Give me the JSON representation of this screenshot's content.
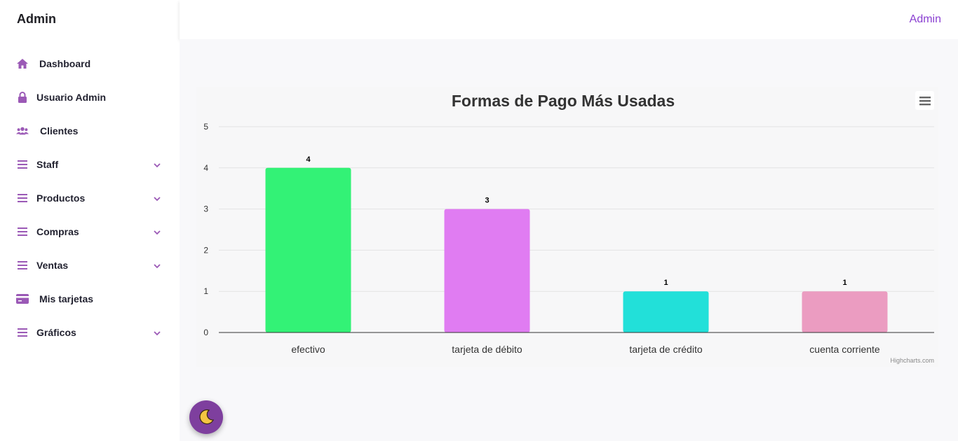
{
  "brand": "Admin",
  "topbar": {
    "user": "Admin"
  },
  "sidebar": {
    "items": [
      {
        "label": "Dashboard",
        "icon": "home-icon"
      },
      {
        "label": "Usuario Admin",
        "icon": "lock-icon"
      },
      {
        "label": "Clientes",
        "icon": "users-icon"
      },
      {
        "label": "Staff",
        "icon": "menu-icon",
        "expandable": true
      },
      {
        "label": "Productos",
        "icon": "menu-icon",
        "expandable": true
      },
      {
        "label": "Compras",
        "icon": "menu-icon",
        "expandable": true
      },
      {
        "label": "Ventas",
        "icon": "menu-icon",
        "expandable": true
      },
      {
        "label": "Mis tarjetas",
        "icon": "credit-card-icon"
      },
      {
        "label": "Gráficos",
        "icon": "menu-icon",
        "expandable": true
      }
    ]
  },
  "credits": "Highcharts.com",
  "colors": {
    "accent": "#8a3fd1",
    "icon": "#9b59b6",
    "fab": "#7e3f9e"
  },
  "chart_data": {
    "type": "bar",
    "title": "Formas de Pago Más Usadas",
    "categories": [
      "efectivo",
      "tarjeta de débito",
      "tarjeta de crédito",
      "cuenta corriente"
    ],
    "values": [
      4,
      3,
      1,
      1
    ],
    "colors": [
      "#33f276",
      "#e07cf2",
      "#22e0d9",
      "#eb9cc1"
    ],
    "ylim": [
      0,
      5
    ],
    "yticks": [
      0,
      1,
      2,
      3,
      4,
      5
    ],
    "grid": true,
    "legend": false
  }
}
